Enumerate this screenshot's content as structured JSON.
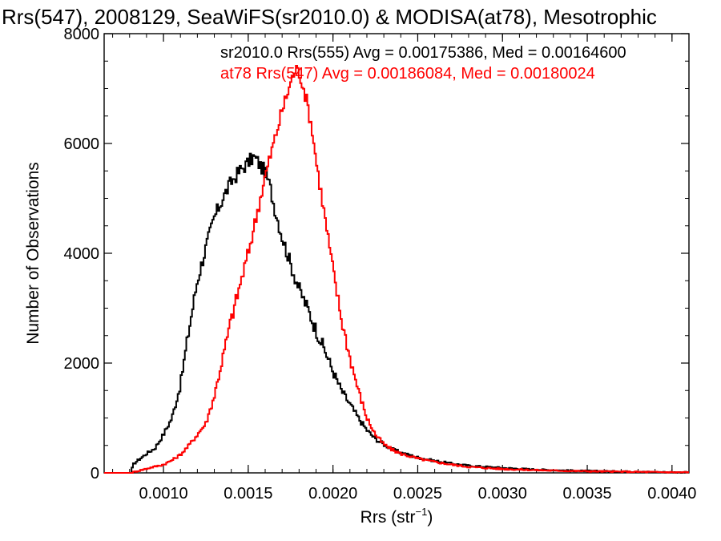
{
  "chart_data": {
    "type": "line",
    "title": "Rrs(547), 2008129, SeaWiFS(sr2010.0) & MODISA(at78), Mesotrophic",
    "xlabel_main": "Rrs (str",
    "xlabel_sup": "−1",
    "xlabel_end": ")",
    "ylabel": "Number of Observations",
    "xlim": [
      0.00065,
      0.0041
    ],
    "ylim": [
      0,
      8000
    ],
    "xticks": [
      {
        "value": 0.001,
        "label": "0.0010"
      },
      {
        "value": 0.0015,
        "label": "0.0015"
      },
      {
        "value": 0.002,
        "label": "0.0020"
      },
      {
        "value": 0.0025,
        "label": "0.0025"
      },
      {
        "value": 0.003,
        "label": "0.0030"
      },
      {
        "value": 0.0035,
        "label": "0.0035"
      },
      {
        "value": 0.004,
        "label": "0.0040"
      }
    ],
    "yticks": [
      {
        "value": 0,
        "label": "0"
      },
      {
        "value": 2000,
        "label": "2000"
      },
      {
        "value": 4000,
        "label": "4000"
      },
      {
        "value": 6000,
        "label": "6000"
      },
      {
        "value": 8000,
        "label": "8000"
      }
    ],
    "legend": [
      {
        "text": "sr2010.0 Rrs(555) Avg = 0.00175386, Med = 0.00164600",
        "color": "#000000"
      },
      {
        "text": "at78 Rrs(547) Avg = 0.00186084, Med = 0.00180024",
        "color": "#ff0000"
      }
    ],
    "series": [
      {
        "color": "#000000",
        "step": "histogram",
        "x": [
          0.00065,
          0.00081,
          0.00082,
          0.00085,
          0.00088,
          0.0009,
          0.00095,
          0.001,
          0.00105,
          0.0011,
          0.00115,
          0.0012,
          0.00125,
          0.0013,
          0.00135,
          0.0014,
          0.00145,
          0.0015,
          0.00153,
          0.00155,
          0.00158,
          0.0016,
          0.00163,
          0.00165,
          0.0017,
          0.00175,
          0.0018,
          0.00185,
          0.0019,
          0.00195,
          0.002,
          0.00205,
          0.0021,
          0.00215,
          0.0022,
          0.00225,
          0.0023,
          0.00235,
          0.0024,
          0.0025,
          0.0026,
          0.0027,
          0.0028,
          0.0029,
          0.003,
          0.0032,
          0.0034,
          0.0036,
          0.0038,
          0.004,
          0.0041
        ],
        "y": [
          0,
          0,
          150,
          230,
          300,
          350,
          450,
          700,
          1000,
          1600,
          2600,
          3500,
          4100,
          4650,
          5000,
          5300,
          5500,
          5650,
          5750,
          5700,
          5550,
          5500,
          5200,
          4900,
          4300,
          3800,
          3350,
          3000,
          2600,
          2250,
          1850,
          1500,
          1250,
          1000,
          780,
          620,
          520,
          430,
          370,
          280,
          220,
          170,
          130,
          110,
          90,
          60,
          40,
          30,
          20,
          12,
          10
        ]
      },
      {
        "color": "#ff0000",
        "step": "histogram",
        "x": [
          0.00065,
          0.00081,
          0.00083,
          0.00088,
          0.00093,
          0.001,
          0.00105,
          0.0011,
          0.00115,
          0.0012,
          0.00125,
          0.0013,
          0.00135,
          0.0014,
          0.00145,
          0.0015,
          0.00155,
          0.0016,
          0.00165,
          0.0017,
          0.00173,
          0.00176,
          0.00178,
          0.0018,
          0.00182,
          0.00185,
          0.00188,
          0.0019,
          0.00195,
          0.002,
          0.00205,
          0.0021,
          0.00215,
          0.0022,
          0.00225,
          0.0023,
          0.00235,
          0.0024,
          0.0025,
          0.0026,
          0.0027,
          0.0028,
          0.0029,
          0.003,
          0.0032,
          0.0034,
          0.0036,
          0.0038,
          0.004,
          0.0041
        ],
        "y": [
          0,
          0,
          20,
          60,
          100,
          150,
          230,
          330,
          500,
          700,
          900,
          1400,
          2100,
          2800,
          3400,
          4000,
          4700,
          5400,
          6000,
          6600,
          6900,
          7200,
          7350,
          7300,
          7100,
          6700,
          6200,
          5700,
          4700,
          3700,
          2800,
          2100,
          1500,
          1000,
          700,
          520,
          420,
          350,
          260,
          200,
          150,
          110,
          90,
          70,
          50,
          35,
          25,
          18,
          12,
          10
        ]
      }
    ]
  }
}
